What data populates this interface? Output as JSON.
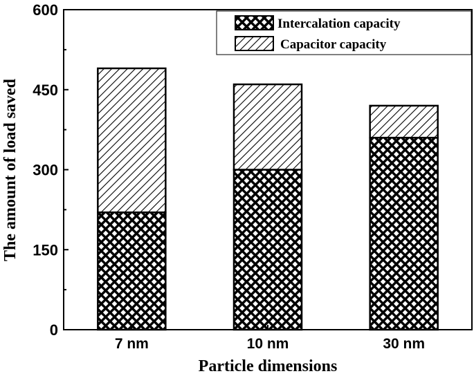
{
  "chart_data": {
    "type": "bar",
    "stacked": true,
    "categories": [
      "7 nm",
      "10 nm",
      "30 nm"
    ],
    "series": [
      {
        "name": "Intercalation capacity",
        "values": [
          220,
          300,
          360
        ],
        "pattern": "crosshatch"
      },
      {
        "name": "Capacitor capacity",
        "values": [
          270,
          160,
          60
        ],
        "pattern": "diagonal"
      }
    ],
    "xlabel": "Particle dimensions",
    "ylabel": "The amount of load saved",
    "ylim": [
      0,
      600
    ],
    "yticks": [
      0,
      150,
      300,
      450,
      600
    ],
    "grid": false,
    "legend_position": "top-right",
    "colors": {
      "ink": "#000000",
      "background": "#ffffff"
    }
  }
}
